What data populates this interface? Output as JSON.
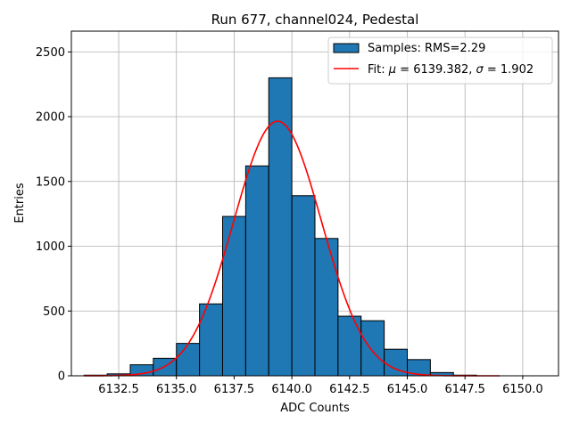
{
  "chart_data": {
    "type": "bar",
    "title": "Run 677, channel024, Pedestal",
    "xlabel": "ADC Counts",
    "ylabel": "Entries",
    "xlim": [
      6130.45,
      6151.55
    ],
    "ylim": [
      0,
      2660
    ],
    "grid": true,
    "legend_placement": "top-right",
    "xticks": [
      6132.5,
      6135.0,
      6137.5,
      6140.0,
      6142.5,
      6145.0,
      6147.5,
      6150.0
    ],
    "xtick_labels": [
      "6132.5",
      "6135.0",
      "6137.5",
      "6140.0",
      "6142.5",
      "6145.0",
      "6147.5",
      "6150.0"
    ],
    "yticks": [
      0,
      500,
      1000,
      1500,
      2000,
      2500
    ],
    "ytick_labels": [
      "0",
      "500",
      "1000",
      "1500",
      "2000",
      "2500"
    ],
    "histogram": {
      "name": "Samples: RMS=2.29",
      "color": "#1f77b4",
      "edgecolor": "#000000",
      "bin_edges": [
        6131,
        6132,
        6133,
        6134,
        6135,
        6136,
        6137,
        6138,
        6139,
        6140,
        6141,
        6142,
        6143,
        6144,
        6145,
        6146,
        6147,
        6148,
        6149,
        6150,
        6151
      ],
      "values": [
        5,
        15,
        85,
        135,
        250,
        555,
        1230,
        1620,
        2300,
        1390,
        1060,
        460,
        425,
        205,
        125,
        25,
        5,
        0,
        0,
        0
      ]
    },
    "fit": {
      "name": "Fit: μ = 6139.382, σ = 1.902",
      "label_prefix": "Fit: ",
      "mu_symbol": "μ",
      "mu_text": " = 6139.382, ",
      "sigma_symbol": "σ",
      "sigma_text": " = 1.902",
      "color": "#ff0000",
      "mu": 6139.382,
      "sigma": 1.902,
      "amplitude": 1965,
      "x_range": [
        6131,
        6149
      ]
    }
  }
}
